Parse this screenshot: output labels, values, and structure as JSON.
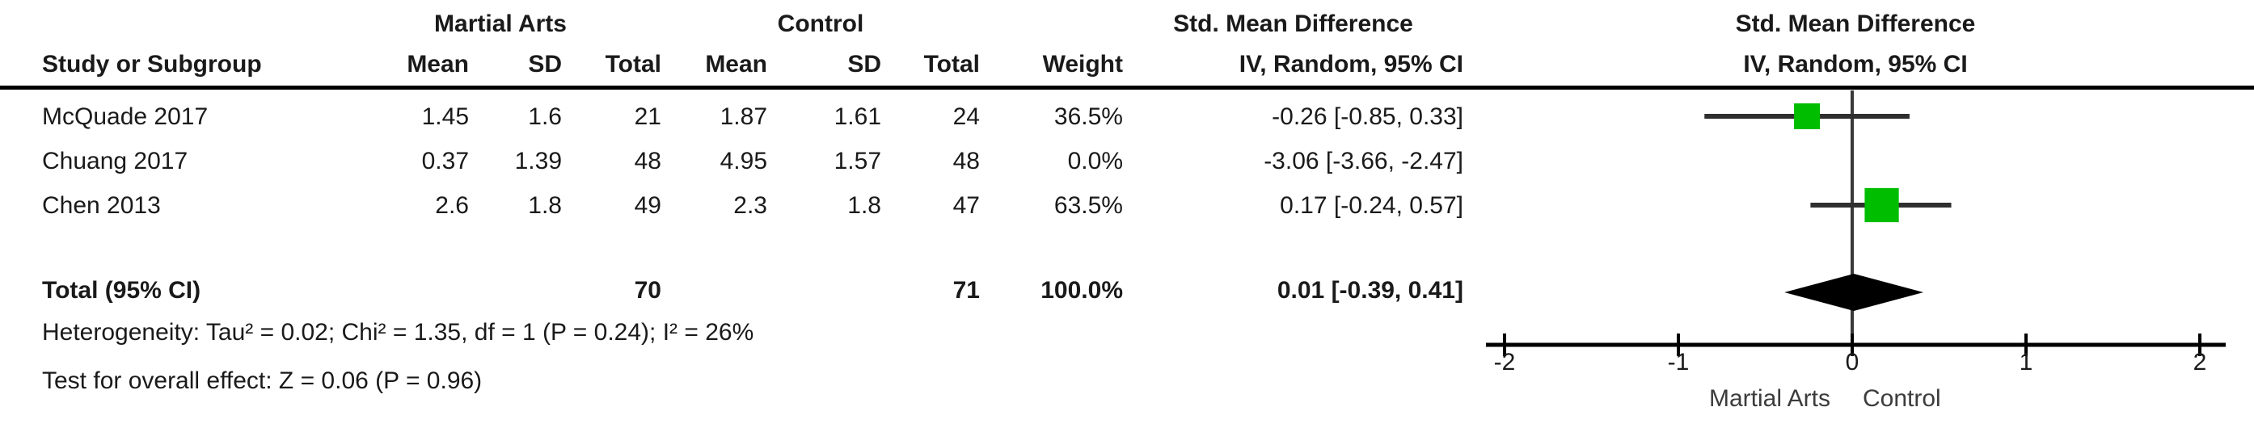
{
  "header": {
    "group_experimental": "Martial Arts",
    "group_control": "Control",
    "effect_title": "Std. Mean Difference",
    "effect_subtitle": "IV, Random, 95% CI",
    "plot_title": "Std. Mean Difference",
    "plot_subtitle": "IV, Random, 95% CI"
  },
  "table": {
    "columns": [
      "Study or Subgroup",
      "Mean",
      "SD",
      "Total",
      "Mean",
      "SD",
      "Total",
      "Weight",
      "IV, Random, 95% CI"
    ],
    "rows": [
      {
        "study": "McQuade 2017",
        "mean_e": "1.45",
        "sd_e": "1.6",
        "total_e": "21",
        "mean_c": "1.87",
        "sd_c": "1.61",
        "total_c": "24",
        "weight": "36.5%",
        "ci": "-0.26 [-0.85, 0.33]"
      },
      {
        "study": "Chuang 2017",
        "mean_e": "0.37",
        "sd_e": "1.39",
        "total_e": "48",
        "mean_c": "4.95",
        "sd_c": "1.57",
        "total_c": "48",
        "weight": "0.0%",
        "ci": "-3.06 [-3.66, -2.47]"
      },
      {
        "study": "Chen 2013",
        "mean_e": "2.6",
        "sd_e": "1.8",
        "total_e": "49",
        "mean_c": "2.3",
        "sd_c": "1.8",
        "total_c": "47",
        "weight": "63.5%",
        "ci": "0.17 [-0.24, 0.57]"
      }
    ],
    "total_row": {
      "label": "Total (95% CI)",
      "total_e": "70",
      "total_c": "71",
      "weight": "100.0%",
      "ci": "0.01 [-0.39, 0.41]"
    },
    "footer": {
      "heterogeneity": "Heterogeneity: Tau² = 0.02; Chi² = 1.35, df = 1 (P = 0.24); I² = 26%",
      "overall_effect": "Test for overall effect: Z = 0.06 (P = 0.96)"
    }
  },
  "chart_data": {
    "type": "scatter",
    "subtype": "forest-plot",
    "title": "Std. Mean Difference",
    "xlabel": "IV, Random, 95% CI",
    "xlim": [
      -2,
      2
    ],
    "ticks": [
      -2,
      -1,
      0,
      1,
      2
    ],
    "favours_left": "Martial Arts",
    "favours_right": "Control",
    "marker_color": "#00bd00",
    "diamond_color": "#000000",
    "studies": [
      {
        "name": "McQuade 2017",
        "est": -0.26,
        "lo": -0.85,
        "hi": 0.33,
        "weight_pct": 36.5
      },
      {
        "name": "Chuang 2017",
        "est": -3.06,
        "lo": -3.66,
        "hi": -2.47,
        "weight_pct": 0.0
      },
      {
        "name": "Chen 2013",
        "est": 0.17,
        "lo": -0.24,
        "hi": 0.57,
        "weight_pct": 63.5
      }
    ],
    "total": {
      "est": 0.01,
      "lo": -0.39,
      "hi": 0.41
    }
  }
}
